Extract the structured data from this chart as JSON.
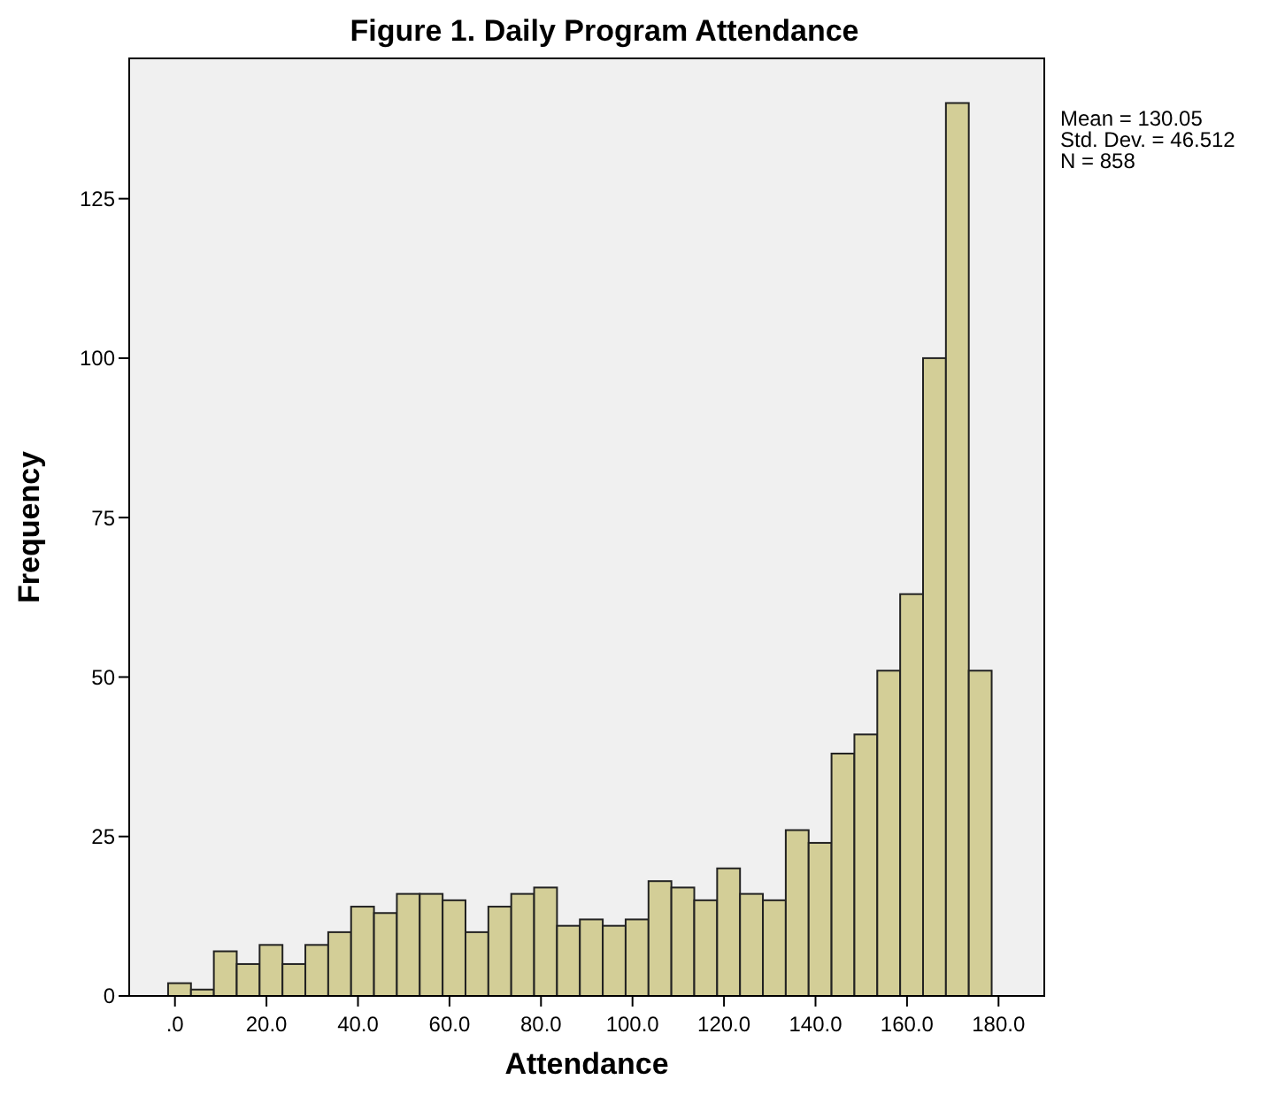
{
  "chart_data": {
    "type": "histogram",
    "title": "Figure 1. Daily Program Attendance",
    "xlabel": "Attendance",
    "ylabel": "Frequency",
    "annotations": [
      "Mean = 130.05",
      "Std. Dev. = 46.512",
      "N = 858"
    ],
    "bins": [
      -1.5,
      3.5,
      8.5,
      13.5,
      18.5,
      23.5,
      28.5,
      33.5,
      38.5,
      43.5,
      48.5,
      53.5,
      58.5,
      63.5,
      68.5,
      73.5,
      78.5,
      83.5,
      88.5,
      93.5,
      98.5,
      103.5,
      108.5,
      113.5,
      118.5,
      123.5,
      128.5,
      133.5,
      138.5,
      143.5,
      148.5,
      153.5,
      158.5,
      163.5,
      168.5,
      173.5,
      178.5
    ],
    "values": [
      2,
      1,
      7,
      5,
      8,
      5,
      8,
      10,
      14,
      13,
      16,
      16,
      15,
      10,
      14,
      16,
      17,
      11,
      12,
      11,
      12,
      18,
      17,
      15,
      20,
      16,
      15,
      26,
      24,
      38,
      41,
      51,
      63,
      100,
      140,
      51
    ],
    "color": "#d3ce97",
    "xlim": [
      -10,
      190
    ],
    "ylim": [
      0,
      147
    ],
    "xticks": [
      {
        "value": 0,
        "label": ".0"
      },
      {
        "value": 20,
        "label": "20.0"
      },
      {
        "value": 40,
        "label": "40.0"
      },
      {
        "value": 60,
        "label": "60.0"
      },
      {
        "value": 80,
        "label": "80.0"
      },
      {
        "value": 100,
        "label": "100.0"
      },
      {
        "value": 120,
        "label": "120.0"
      },
      {
        "value": 140,
        "label": "140.0"
      },
      {
        "value": 160,
        "label": "160.0"
      },
      {
        "value": 180,
        "label": "180.0"
      }
    ],
    "yticks": [
      0,
      25,
      50,
      75,
      100,
      125
    ],
    "grid": false
  }
}
